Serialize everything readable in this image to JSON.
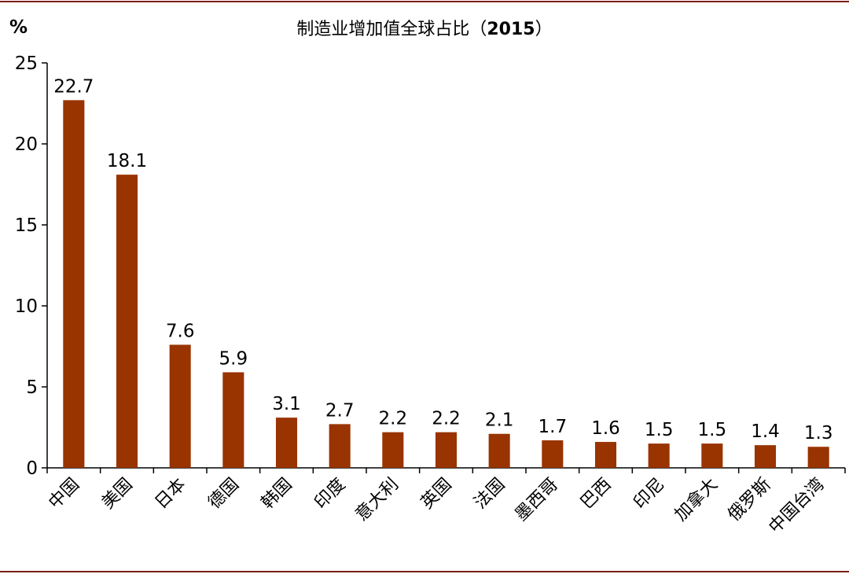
{
  "chart_data": {
    "type": "bar",
    "title": "制造业增加值全球占比（",
    "title_year": "2015",
    "title_close": "）",
    "ylabel": "%",
    "xlabel": "",
    "ylim": [
      0,
      25
    ],
    "yticks": [
      "0",
      "5",
      "10",
      "15",
      "20",
      "25"
    ],
    "grid": false,
    "categories": [
      "中国",
      "美国",
      "日本",
      "德国",
      "韩国",
      "印度",
      "意大利",
      "英国",
      "法国",
      "墨西哥",
      "巴西",
      "印尼",
      "加拿大",
      "俄罗斯",
      "中国台湾"
    ],
    "values": [
      22.7,
      18.1,
      7.6,
      5.9,
      3.1,
      2.7,
      2.2,
      2.2,
      2.1,
      1.7,
      1.6,
      1.5,
      1.5,
      1.4,
      1.3
    ],
    "data_labels": [
      "22.7",
      "18.1",
      "7.6",
      "5.9",
      "3.1",
      "2.7",
      "2.2",
      "2.2",
      "2.1",
      "1.7",
      "1.6",
      "1.5",
      "1.5",
      "1.4",
      "1.3"
    ],
    "bar_color": "#993300",
    "border_color": "#7a1f1a"
  }
}
